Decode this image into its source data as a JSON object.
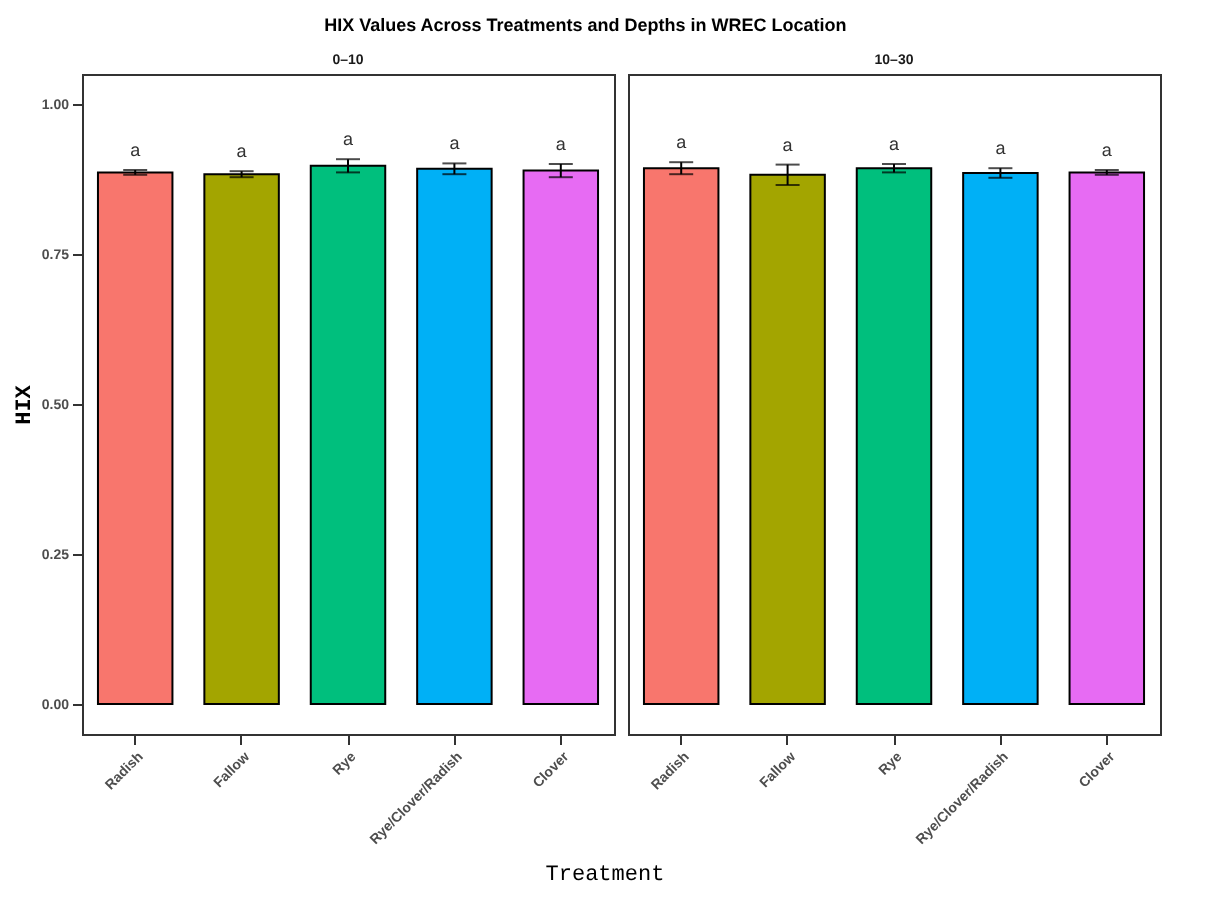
{
  "chart_data": [
    {
      "type": "bar",
      "title": "HIX Values Across Treatments and Depths in WREC Location",
      "subtitle": "0–10",
      "xlabel": "Treatment",
      "ylabel": "HIX",
      "categories": [
        "Radish",
        "Fallow",
        "Rye",
        "Rye/Clover/Radish",
        "Clover"
      ],
      "values": [
        0.886,
        0.883,
        0.897,
        0.892,
        0.889
      ],
      "errors": [
        0.004,
        0.005,
        0.011,
        0.009,
        0.011
      ],
      "colors": [
        "#f8766d",
        "#a3a500",
        "#00bf7d",
        "#00b0f6",
        "#e76bf3"
      ],
      "ylim": [
        -0.05,
        1.05
      ],
      "yticks": [
        {
          "value": 0,
          "label": "0.00"
        },
        {
          "value": 0.25,
          "label": "0.25"
        },
        {
          "value": 0.5,
          "label": "0.50"
        },
        {
          "value": 0.75,
          "label": "0.75"
        },
        {
          "value": 1,
          "label": "1.00"
        }
      ],
      "grid": false,
      "annotations": [
        {
          "text": "a",
          "x": "Radish",
          "y": 0.89
        },
        {
          "text": "a",
          "x": "Fallow",
          "y": 0.888
        },
        {
          "text": "a",
          "x": "Rye",
          "y": 0.908
        },
        {
          "text": "a",
          "x": "Rye/Clover/Radish",
          "y": 0.901
        },
        {
          "text": "a",
          "x": "Clover",
          "y": 0.9
        }
      ]
    },
    {
      "type": "bar",
      "subtitle": "10–30",
      "categories": [
        "Radish",
        "Fallow",
        "Rye",
        "Rye/Clover/Radish",
        "Clover"
      ],
      "values": [
        0.893,
        0.882,
        0.893,
        0.885,
        0.886
      ],
      "errors": [
        0.01,
        0.017,
        0.007,
        0.008,
        0.004
      ],
      "colors": [
        "#f8766d",
        "#a3a500",
        "#00bf7d",
        "#00b0f6",
        "#e76bf3"
      ],
      "ylim": [
        -0.05,
        1.05
      ],
      "grid": false,
      "tick_labels": "x",
      "annotations": [
        {
          "text": "a",
          "x": "Radish",
          "y": 0.903
        },
        {
          "text": "a",
          "x": "Fallow",
          "y": 0.899
        },
        {
          "text": "a",
          "x": "Rye",
          "y": 0.9
        },
        {
          "text": "a",
          "x": "Rye/Clover/Radish",
          "y": 0.893
        },
        {
          "text": "a",
          "x": "Clover",
          "y": 0.89
        }
      ]
    }
  ]
}
